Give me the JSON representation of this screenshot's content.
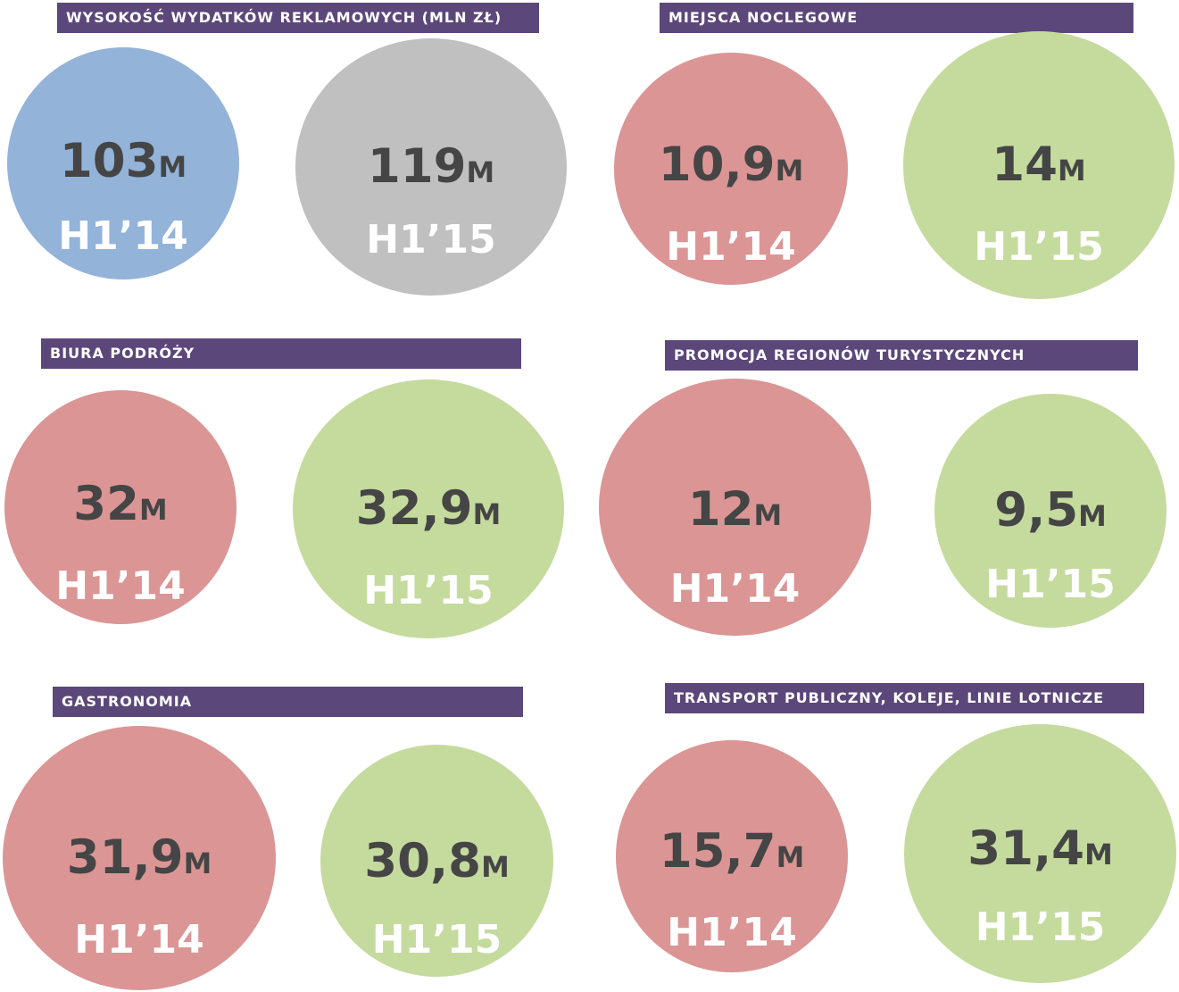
{
  "panels": [
    {
      "title": "WYSOKOŚĆ WYDATKÓW REKLAMOWYCH (MLN ZŁ)",
      "items": [
        {
          "value": "103",
          "unit": "M",
          "period": "H1’14",
          "color": "#93b3d9"
        },
        {
          "value": "119",
          "unit": "M",
          "period": "H1’15",
          "color": "#c0c0c0"
        }
      ]
    },
    {
      "title": "MIEJSCA NOCLEGOWE",
      "items": [
        {
          "value": "10,9",
          "unit": "M",
          "period": "H1’14",
          "color": "#db9595"
        },
        {
          "value": "14",
          "unit": "M",
          "period": "H1’15",
          "color": "#c5db9e"
        }
      ]
    },
    {
      "title": "BIURA PODRÓŻY",
      "items": [
        {
          "value": "32",
          "unit": "M",
          "period": "H1’14",
          "color": "#db9595"
        },
        {
          "value": "32,9",
          "unit": "M",
          "period": "H1’15",
          "color": "#c5db9e"
        }
      ]
    },
    {
      "title": "PROMOCJA REGIONÓW TURYSTYCZNYCH",
      "items": [
        {
          "value": "12",
          "unit": "M",
          "period": "H1’14",
          "color": "#db9595"
        },
        {
          "value": "9,5",
          "unit": "M",
          "period": "H1’15",
          "color": "#c5db9e"
        }
      ]
    },
    {
      "title": "GASTRONOMIA",
      "items": [
        {
          "value": "31,9",
          "unit": "M",
          "period": "H1’14",
          "color": "#db9595"
        },
        {
          "value": "30,8",
          "unit": "M",
          "period": "H1’15",
          "color": "#c5db9e"
        }
      ]
    },
    {
      "title": "TRANSPORT PUBLICZNY, KOLEJE, LINIE LOTNICZE",
      "items": [
        {
          "value": "15,7",
          "unit": "M",
          "period": "H1’14",
          "color": "#db9595"
        },
        {
          "value": "31,4",
          "unit": "M",
          "period": "H1’15",
          "color": "#c5db9e"
        }
      ]
    }
  ]
}
